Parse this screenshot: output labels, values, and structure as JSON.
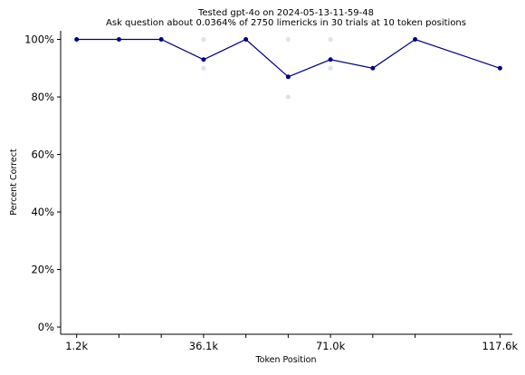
{
  "chart_data": {
    "type": "line",
    "title": "Tested gpt-4o on 2024-05-13-11-59-48",
    "subtitle": "Ask question about 0.0364% of 2750 limericks in 30 trials at 10 token positions",
    "xlabel": "Token Position",
    "ylabel": "Percent Correct",
    "x_tick_labels": [
      {
        "x": 1200,
        "label": "1.2k"
      },
      {
        "x": 36100,
        "label": "36.1k"
      },
      {
        "x": 71000,
        "label": "71.0k"
      },
      {
        "x": 117600,
        "label": "117.6k"
      }
    ],
    "x_ticks_unlabeled": [
      12833,
      24467,
      47733,
      59367,
      82633,
      94267
    ],
    "xlim": [
      -3200,
      121000
    ],
    "y_ticks": [
      0,
      20,
      40,
      60,
      80,
      100
    ],
    "y_tick_labels": [
      "0%",
      "20%",
      "40%",
      "60%",
      "80%",
      "100%"
    ],
    "ylim": [
      -2.5,
      103
    ],
    "line_color": "#000080",
    "scatter_color": "#b0c4de",
    "series": [
      {
        "x": [
          1200,
          12833,
          24467,
          36100,
          47733,
          59367,
          71000,
          82633,
          94267,
          117600
        ],
        "values": [
          100,
          100,
          100,
          93,
          100,
          87,
          93,
          90,
          100,
          90
        ]
      }
    ],
    "trial_points": [
      {
        "x": 36100,
        "y": 100
      },
      {
        "x": 36100,
        "y": 90
      },
      {
        "x": 59367,
        "y": 100
      },
      {
        "x": 59367,
        "y": 80
      },
      {
        "x": 71000,
        "y": 100
      },
      {
        "x": 71000,
        "y": 90
      }
    ],
    "grid": false
  }
}
